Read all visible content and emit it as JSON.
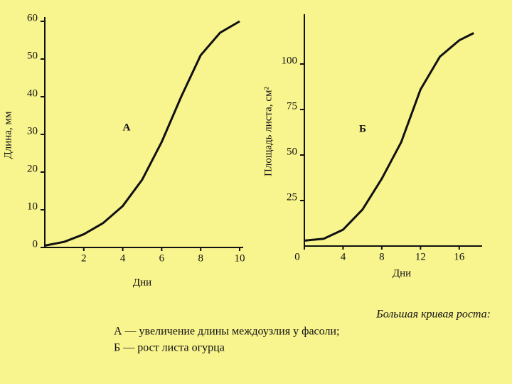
{
  "chart_data": [
    {
      "type": "line",
      "x_label": "Дни",
      "y_label": "Длина, мм",
      "annotation": "А",
      "color": "#111111",
      "x": [
        0,
        1,
        2,
        3,
        4,
        5,
        6,
        7,
        8,
        9,
        10
      ],
      "values": [
        0.5,
        1.5,
        3.5,
        6.5,
        11,
        18,
        28,
        40,
        51,
        57,
        60
      ],
      "xlim": [
        0,
        10
      ],
      "ylim": [
        0,
        60
      ],
      "xticks": [
        2,
        4,
        6,
        8,
        10
      ],
      "yticks": [
        0,
        10,
        20,
        30,
        40,
        50,
        60
      ]
    },
    {
      "type": "line",
      "x_label": "Дни",
      "y_label": "Площадь листа, см²",
      "annotation": "Б",
      "color": "#111111",
      "x": [
        0,
        2,
        4,
        6,
        8,
        10,
        12,
        14,
        16,
        17.5
      ],
      "values": [
        3,
        4,
        9,
        20,
        37,
        57,
        86,
        104,
        113,
        117
      ],
      "xlim": [
        0,
        18
      ],
      "ylim": [
        0,
        125
      ],
      "xticks": [
        0,
        4,
        8,
        12,
        16
      ],
      "yticks": [
        25,
        50,
        75,
        100
      ]
    }
  ],
  "caption": {
    "title": "Большая кривая роста:",
    "lines": [
      "А — увеличение длины междоузлия у фасоли;",
      "Б — рост листа огурца"
    ]
  }
}
